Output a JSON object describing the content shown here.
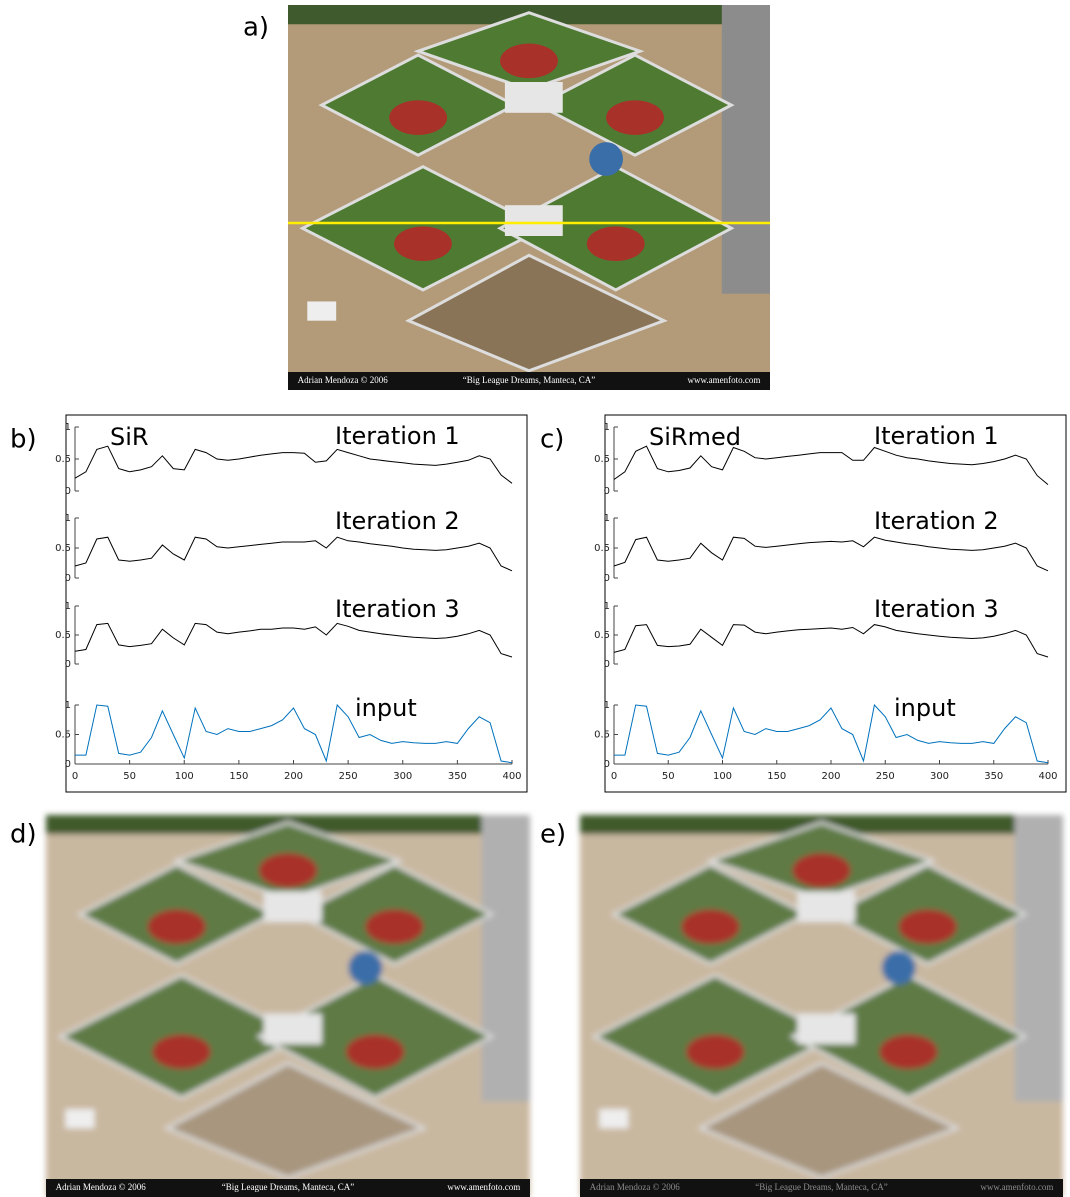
{
  "figure": {
    "panel_labels": [
      "a)",
      "b)",
      "c)",
      "d)",
      "e)"
    ],
    "photo_caption": [
      "Adrian Mendoza © 2006",
      "“Big League Dreams, Manteca, CA”",
      "www.amenfoto.com"
    ]
  },
  "chart_data": [
    {
      "type": "line",
      "method": "SiR",
      "x": [
        0,
        10,
        20,
        30,
        40,
        50,
        60,
        70,
        80,
        90,
        100,
        110,
        120,
        130,
        140,
        150,
        160,
        170,
        180,
        190,
        200,
        210,
        220,
        230,
        240,
        250,
        260,
        270,
        280,
        290,
        300,
        310,
        320,
        330,
        340,
        350,
        360,
        370,
        380,
        390,
        400
      ],
      "xlim": [
        0,
        400
      ],
      "xticks": [
        0,
        50,
        100,
        150,
        200,
        250,
        300,
        350,
        400
      ],
      "ylim": [
        0,
        1
      ],
      "yticks": [
        0,
        0.5,
        1
      ],
      "series": [
        {
          "name": "Iteration 1",
          "color": "#000000",
          "values": [
            0.2,
            0.3,
            0.65,
            0.7,
            0.35,
            0.3,
            0.33,
            0.38,
            0.55,
            0.35,
            0.33,
            0.65,
            0.6,
            0.5,
            0.48,
            0.5,
            0.53,
            0.56,
            0.58,
            0.6,
            0.6,
            0.59,
            0.45,
            0.47,
            0.65,
            0.6,
            0.55,
            0.5,
            0.48,
            0.46,
            0.44,
            0.42,
            0.41,
            0.4,
            0.42,
            0.45,
            0.48,
            0.55,
            0.5,
            0.25,
            0.12
          ]
        },
        {
          "name": "Iteration 2",
          "color": "#000000",
          "values": [
            0.2,
            0.25,
            0.65,
            0.68,
            0.3,
            0.28,
            0.3,
            0.33,
            0.55,
            0.4,
            0.3,
            0.68,
            0.65,
            0.52,
            0.5,
            0.52,
            0.54,
            0.56,
            0.58,
            0.6,
            0.6,
            0.6,
            0.62,
            0.5,
            0.68,
            0.62,
            0.6,
            0.57,
            0.55,
            0.53,
            0.5,
            0.48,
            0.47,
            0.46,
            0.47,
            0.5,
            0.53,
            0.58,
            0.5,
            0.2,
            0.12
          ]
        },
        {
          "name": "Iteration 3",
          "color": "#000000",
          "values": [
            0.22,
            0.25,
            0.68,
            0.7,
            0.33,
            0.3,
            0.32,
            0.35,
            0.6,
            0.45,
            0.33,
            0.7,
            0.68,
            0.55,
            0.52,
            0.55,
            0.57,
            0.6,
            0.6,
            0.62,
            0.62,
            0.6,
            0.64,
            0.5,
            0.7,
            0.65,
            0.58,
            0.55,
            0.52,
            0.5,
            0.48,
            0.46,
            0.45,
            0.44,
            0.45,
            0.48,
            0.52,
            0.58,
            0.5,
            0.18,
            0.12
          ]
        },
        {
          "name": "input",
          "color": "#0072bd",
          "values": [
            0.15,
            0.15,
            1,
            0.98,
            0.18,
            0.15,
            0.2,
            0.45,
            0.9,
            0.5,
            0.1,
            0.95,
            0.55,
            0.5,
            0.6,
            0.55,
            0.55,
            0.6,
            0.65,
            0.75,
            0.95,
            0.6,
            0.5,
            0.05,
            1,
            0.8,
            0.45,
            0.5,
            0.4,
            0.35,
            0.38,
            0.36,
            0.35,
            0.35,
            0.38,
            0.35,
            0.6,
            0.8,
            0.7,
            0.05,
            0.02
          ]
        }
      ]
    },
    {
      "type": "line",
      "method": "SiRmed",
      "x": [
        0,
        10,
        20,
        30,
        40,
        50,
        60,
        70,
        80,
        90,
        100,
        110,
        120,
        130,
        140,
        150,
        160,
        170,
        180,
        190,
        200,
        210,
        220,
        230,
        240,
        250,
        260,
        270,
        280,
        290,
        300,
        310,
        320,
        330,
        340,
        350,
        360,
        370,
        380,
        390,
        400
      ],
      "xlim": [
        0,
        400
      ],
      "xticks": [
        0,
        50,
        100,
        150,
        200,
        250,
        300,
        350,
        400
      ],
      "ylim": [
        0,
        1
      ],
      "yticks": [
        0,
        0.5,
        1
      ],
      "series": [
        {
          "name": "Iteration 1",
          "color": "#000000",
          "values": [
            0.18,
            0.3,
            0.62,
            0.7,
            0.35,
            0.3,
            0.32,
            0.36,
            0.55,
            0.38,
            0.33,
            0.68,
            0.62,
            0.52,
            0.5,
            0.52,
            0.54,
            0.56,
            0.58,
            0.6,
            0.6,
            0.6,
            0.48,
            0.48,
            0.68,
            0.62,
            0.56,
            0.52,
            0.5,
            0.47,
            0.45,
            0.43,
            0.42,
            0.41,
            0.43,
            0.46,
            0.5,
            0.56,
            0.5,
            0.24,
            0.1
          ]
        },
        {
          "name": "Iteration 2",
          "color": "#000000",
          "values": [
            0.2,
            0.26,
            0.64,
            0.68,
            0.3,
            0.28,
            0.3,
            0.33,
            0.58,
            0.42,
            0.3,
            0.68,
            0.66,
            0.53,
            0.51,
            0.53,
            0.55,
            0.57,
            0.59,
            0.6,
            0.61,
            0.6,
            0.62,
            0.52,
            0.68,
            0.63,
            0.6,
            0.57,
            0.55,
            0.52,
            0.5,
            0.48,
            0.47,
            0.46,
            0.47,
            0.5,
            0.53,
            0.58,
            0.5,
            0.2,
            0.12
          ]
        },
        {
          "name": "Iteration 3",
          "color": "#000000",
          "values": [
            0.2,
            0.25,
            0.66,
            0.68,
            0.32,
            0.3,
            0.31,
            0.34,
            0.6,
            0.46,
            0.32,
            0.68,
            0.67,
            0.55,
            0.52,
            0.55,
            0.57,
            0.59,
            0.6,
            0.61,
            0.62,
            0.6,
            0.63,
            0.52,
            0.68,
            0.64,
            0.58,
            0.55,
            0.52,
            0.5,
            0.48,
            0.46,
            0.45,
            0.44,
            0.45,
            0.48,
            0.52,
            0.58,
            0.5,
            0.18,
            0.12
          ]
        },
        {
          "name": "input",
          "color": "#0072bd",
          "values": [
            0.15,
            0.15,
            1,
            0.98,
            0.18,
            0.15,
            0.2,
            0.45,
            0.9,
            0.5,
            0.1,
            0.95,
            0.55,
            0.5,
            0.6,
            0.55,
            0.55,
            0.6,
            0.65,
            0.75,
            0.95,
            0.6,
            0.5,
            0.05,
            1,
            0.8,
            0.45,
            0.5,
            0.4,
            0.35,
            0.38,
            0.36,
            0.35,
            0.35,
            0.38,
            0.35,
            0.6,
            0.8,
            0.7,
            0.05,
            0.02
          ]
        }
      ]
    }
  ]
}
